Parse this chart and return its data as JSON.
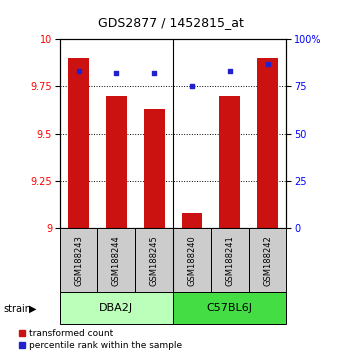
{
  "title": "GDS2877 / 1452815_at",
  "samples": [
    "GSM188243",
    "GSM188244",
    "GSM188245",
    "GSM188240",
    "GSM188241",
    "GSM188242"
  ],
  "transformed_count": [
    9.9,
    9.7,
    9.63,
    9.08,
    9.7,
    9.9
  ],
  "percentile_rank": [
    83,
    82,
    82,
    75,
    83,
    87
  ],
  "ylim_left": [
    9.0,
    10.0
  ],
  "ylim_right": [
    0,
    100
  ],
  "yticks_left": [
    9.0,
    9.25,
    9.5,
    9.75,
    10.0
  ],
  "yticks_right": [
    0,
    25,
    50,
    75,
    100
  ],
  "bar_color": "#cc1111",
  "scatter_color": "#2222cc",
  "bar_width": 0.55,
  "label_transformed": "transformed count",
  "label_percentile": "percentile rank within the sample",
  "group_separator_idx": 3,
  "dba_color": "#bbffbb",
  "c57_color": "#44dd44",
  "sample_box_color": "#cccccc",
  "title_fontsize": 9,
  "tick_fontsize": 7,
  "sample_fontsize": 6,
  "group_fontsize": 8
}
